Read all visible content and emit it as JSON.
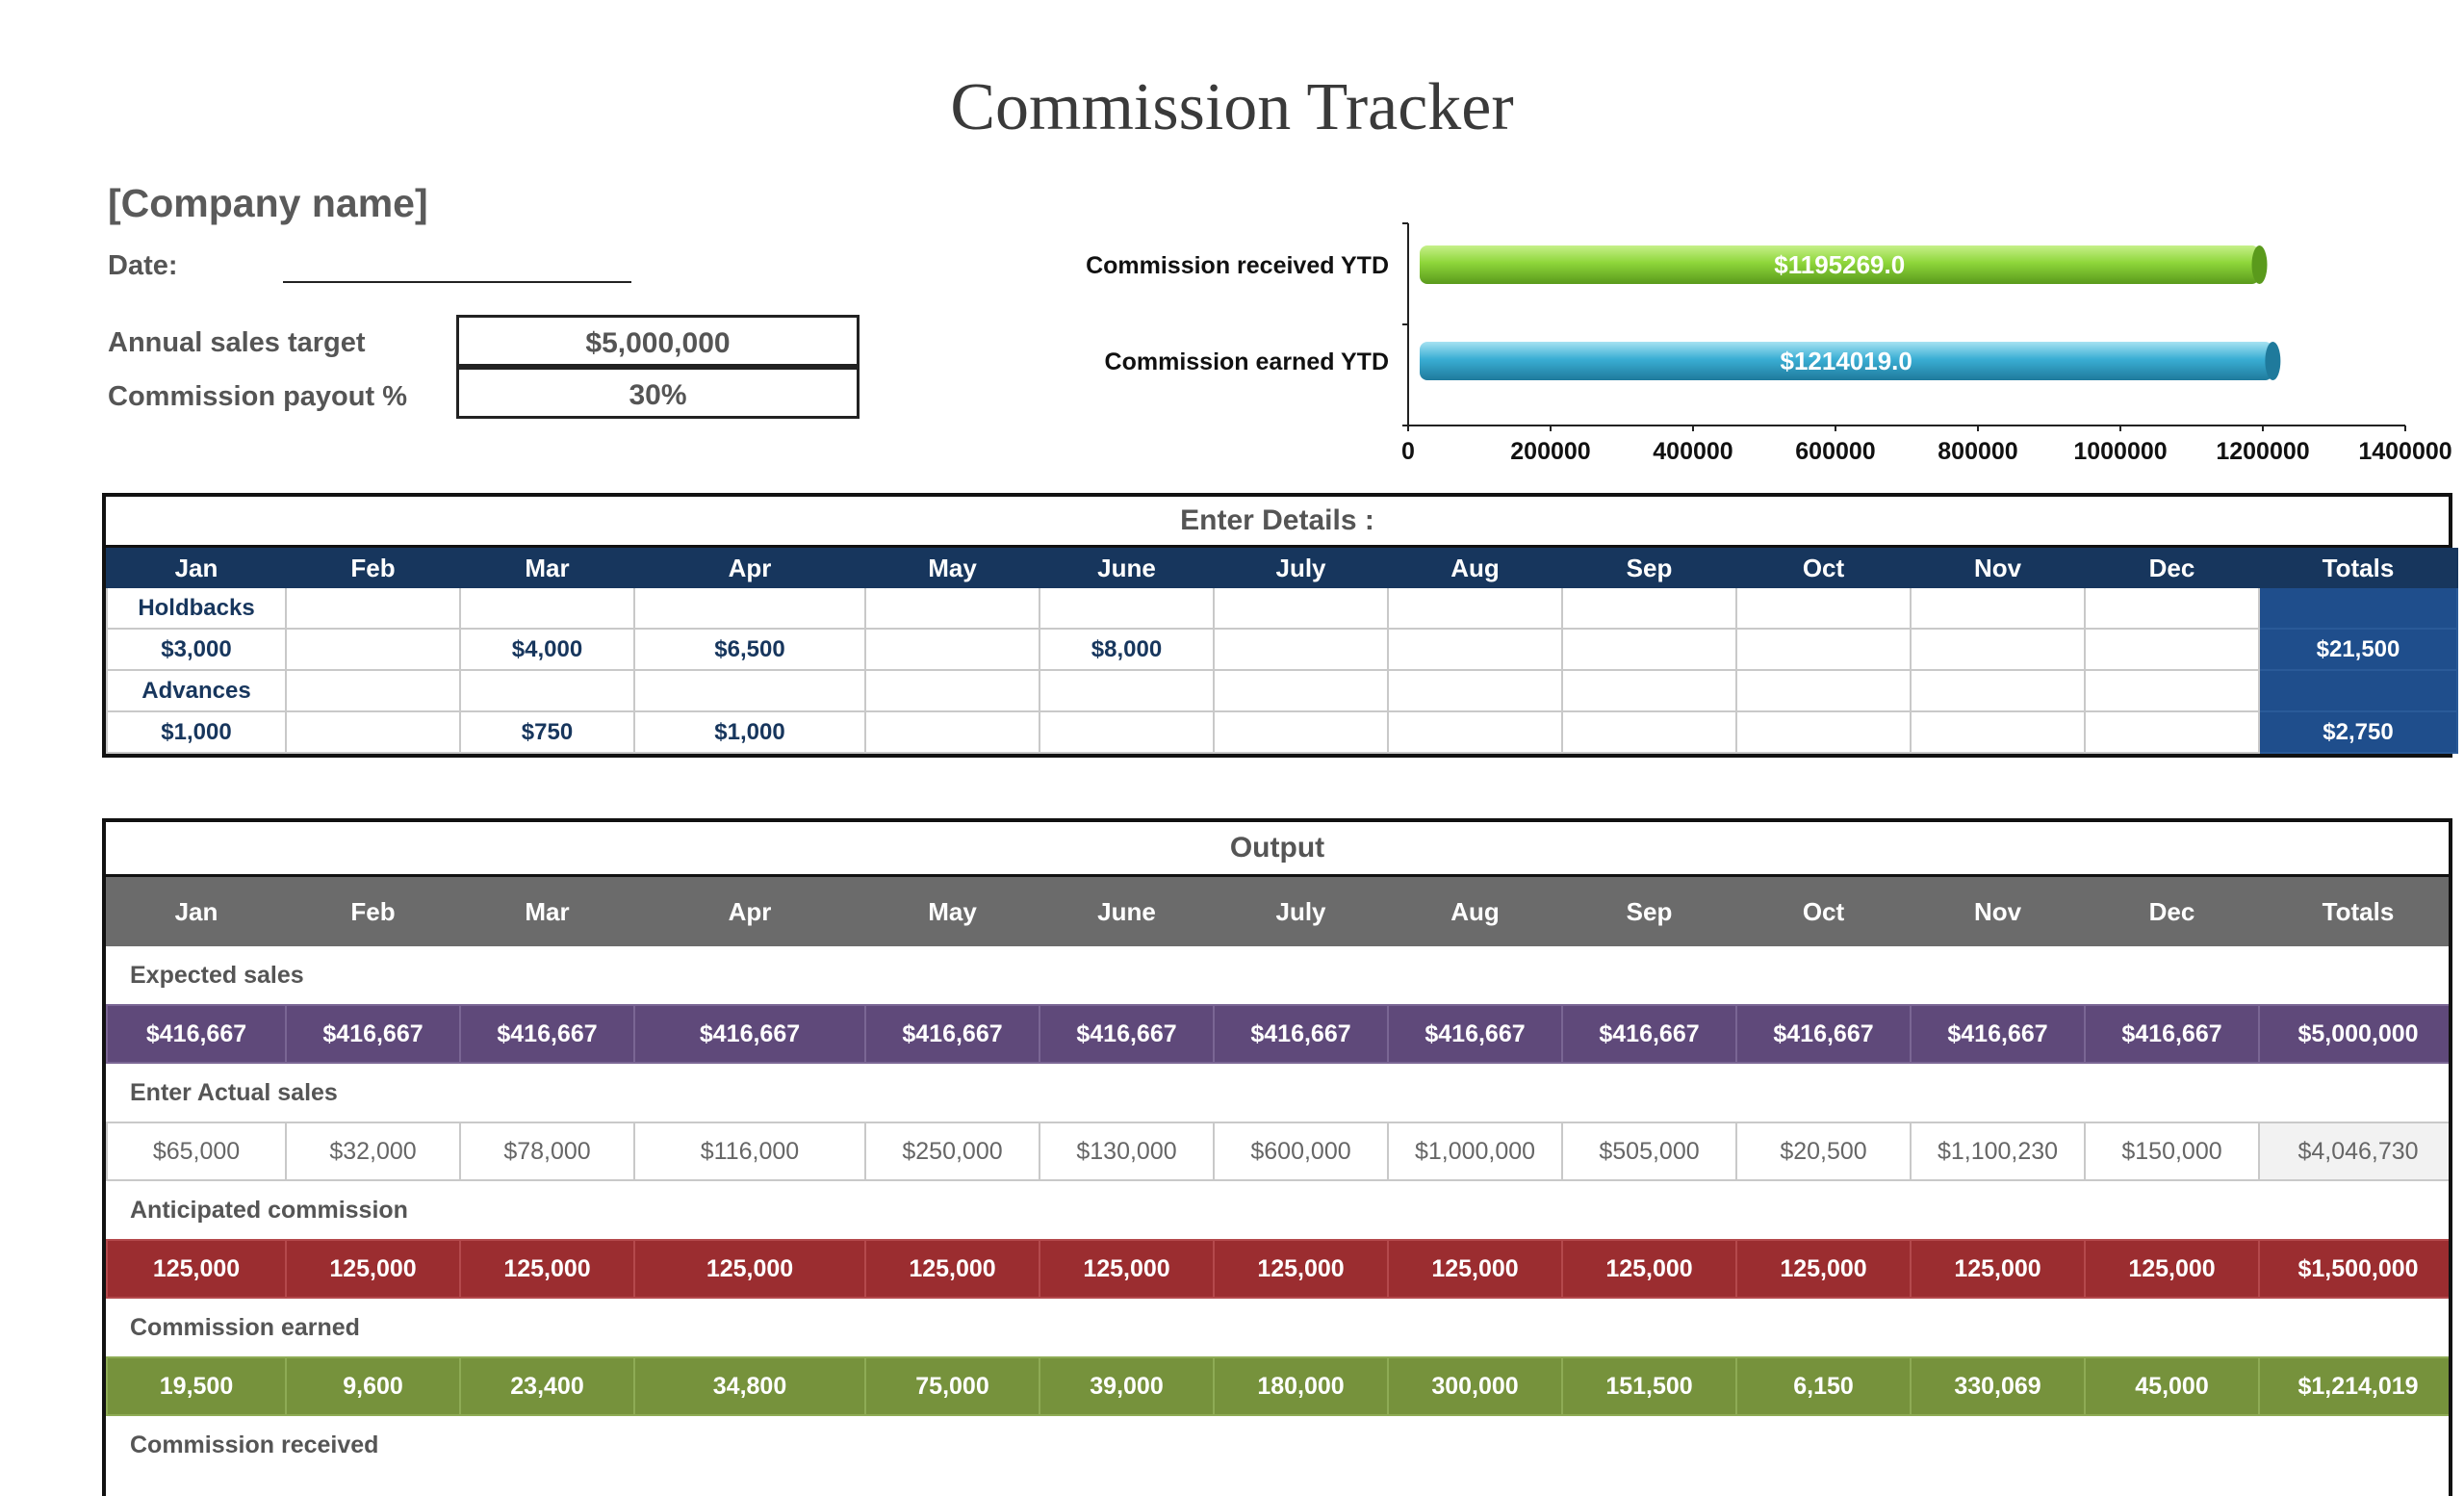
{
  "title": "Commission Tracker",
  "company": "[Company name]",
  "date_label": "Date:",
  "settings": {
    "target_label": "Annual sales target",
    "target_value": "$5,000,000",
    "payout_label": "Commission payout %",
    "payout_value": "30%"
  },
  "chart_data": {
    "type": "bar",
    "orientation": "horizontal",
    "categories": [
      "Commission received YTD",
      "Commission earned YTD"
    ],
    "values": [
      1195269.0,
      1214019.0
    ],
    "data_labels": [
      "$1195269.0",
      "$1214019.0"
    ],
    "colors": [
      "#8ed63a",
      "#3aaed4"
    ],
    "xlim": [
      0,
      1400000
    ],
    "xticks": [
      "0",
      "200000",
      "400000",
      "600000",
      "800000",
      "1000000",
      "1200000",
      "1400000"
    ],
    "grid": false
  },
  "months": [
    "Jan",
    "Feb",
    "Mar",
    "Apr",
    "May",
    "June",
    "July",
    "Aug",
    "Sep",
    "Oct",
    "Nov",
    "Dec"
  ],
  "totals_label": "Totals",
  "details": {
    "title": "Enter Details :",
    "holdbacks_label": "Holdbacks",
    "holdbacks": [
      "$3,000",
      "",
      "$4,000",
      "$6,500",
      "",
      "$8,000",
      "",
      "",
      "",
      "",
      "",
      ""
    ],
    "holdbacks_total": "$21,500",
    "advances_label": "Advances",
    "advances": [
      "$1,000",
      "",
      "$750",
      "$1,000",
      "",
      "",
      "",
      "",
      "",
      "",
      "",
      ""
    ],
    "advances_total": "$2,750"
  },
  "output": {
    "title": "Output",
    "expected_label": "Expected sales",
    "expected": [
      "$416,667",
      "$416,667",
      "$416,667",
      "$416,667",
      "$416,667",
      "$416,667",
      "$416,667",
      "$416,667",
      "$416,667",
      "$416,667",
      "$416,667",
      "$416,667"
    ],
    "expected_total": "$5,000,000",
    "actual_label": "Enter Actual sales",
    "actual": [
      "$65,000",
      "$32,000",
      "$78,000",
      "$116,000",
      "$250,000",
      "$130,000",
      "$600,000",
      "$1,000,000",
      "$505,000",
      "$20,500",
      "$1,100,230",
      "$150,000"
    ],
    "actual_total": "$4,046,730",
    "anticipated_label": "Anticipated commission",
    "anticipated": [
      "125,000",
      "125,000",
      "125,000",
      "125,000",
      "125,000",
      "125,000",
      "125,000",
      "125,000",
      "125,000",
      "125,000",
      "125,000",
      "125,000"
    ],
    "anticipated_total": "$1,500,000",
    "earned_label": "Commission earned",
    "earned": [
      "19,500",
      "9,600",
      "23,400",
      "34,800",
      "75,000",
      "39,000",
      "180,000",
      "300,000",
      "151,500",
      "6,150",
      "330,069",
      "45,000"
    ],
    "earned_total": "$1,214,019",
    "received_label": "Commission received"
  }
}
